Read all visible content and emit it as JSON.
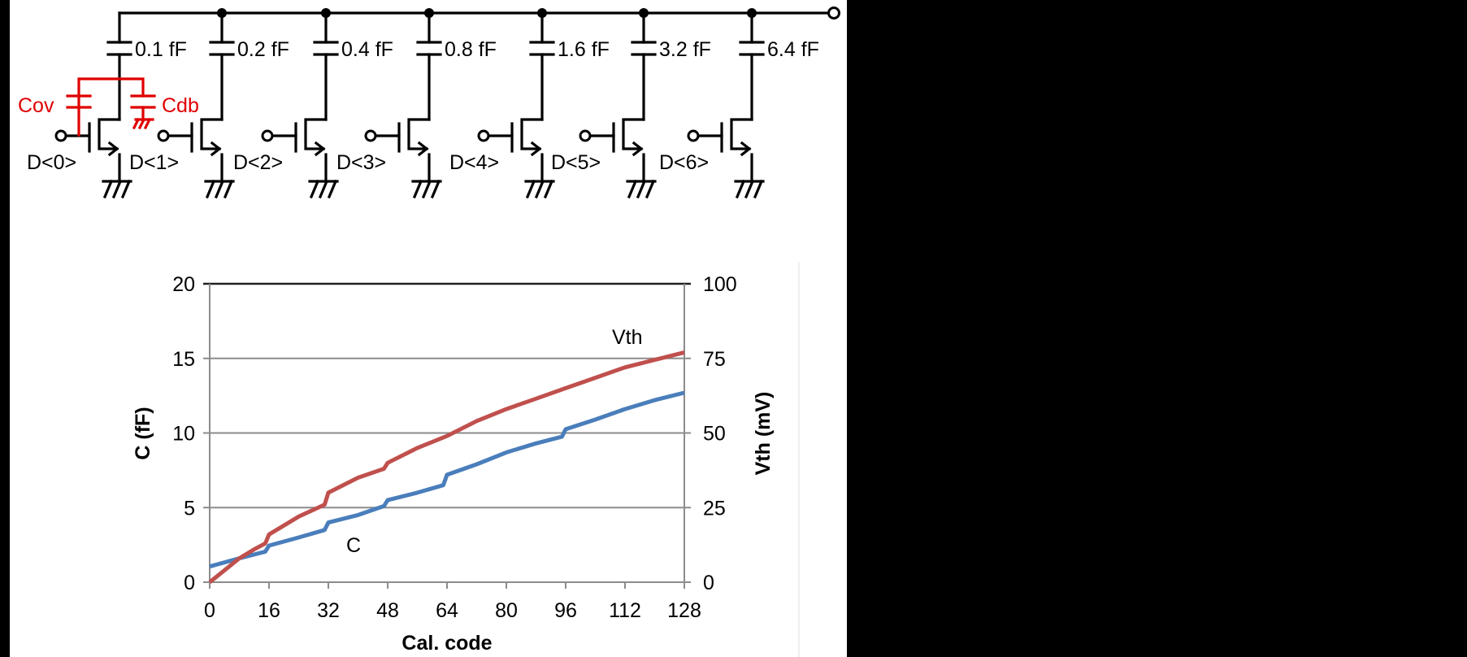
{
  "schematic": {
    "branches": [
      {
        "cap_label": "0.1 fF",
        "gate_label": "D<0>"
      },
      {
        "cap_label": "0.2 fF",
        "gate_label": "D<1>"
      },
      {
        "cap_label": "0.4 fF",
        "gate_label": "D<2>"
      },
      {
        "cap_label": "0.8 fF",
        "gate_label": "D<3>"
      },
      {
        "cap_label": "1.6 fF",
        "gate_label": "D<4>"
      },
      {
        "cap_label": "3.2 fF",
        "gate_label": "D<5>"
      },
      {
        "cap_label": "6.4 fF",
        "gate_label": "D<6>"
      }
    ],
    "parasitics": {
      "cov_label": "Cov",
      "cdb_label": "Cdb",
      "color": "#e00000"
    }
  },
  "chart_data": {
    "type": "line",
    "title": "",
    "xlabel": "Cal. code",
    "ylabel": "C (fF)",
    "y2label": "Vth (mV)",
    "xlim": [
      0,
      128
    ],
    "ylim": [
      0,
      20
    ],
    "y2lim": [
      0,
      100
    ],
    "x_ticks": [
      "0",
      "16",
      "32",
      "48",
      "64",
      "80",
      "96",
      "112",
      "128"
    ],
    "y_ticks": [
      "0",
      "5",
      "10",
      "15",
      "20"
    ],
    "y2_ticks": [
      "0",
      "25",
      "50",
      "75",
      "100"
    ],
    "grid": true,
    "legend": "inline labels",
    "annotations": [
      {
        "text": "Vth",
        "series": "Vth"
      },
      {
        "text": "C",
        "series": "C"
      }
    ],
    "series": [
      {
        "name": "C",
        "axis": "left",
        "unit": "fF",
        "color": "#4a7ebb",
        "x": [
          0,
          8,
          15,
          16,
          24,
          31,
          32,
          40,
          47,
          48,
          56,
          63,
          64,
          72,
          80,
          88,
          95,
          96,
          104,
          112,
          120,
          128
        ],
        "values": [
          1.05,
          1.6,
          2.05,
          2.45,
          3.0,
          3.5,
          4.0,
          4.5,
          5.1,
          5.5,
          6.0,
          6.5,
          7.2,
          7.9,
          8.7,
          9.3,
          9.75,
          10.25,
          10.9,
          11.6,
          12.2,
          12.7
        ]
      },
      {
        "name": "Vth",
        "axis": "right",
        "unit": "mV",
        "color": "#c0504d",
        "x": [
          0,
          4,
          8,
          12,
          15,
          16,
          24,
          31,
          32,
          40,
          47,
          48,
          56,
          64,
          72,
          80,
          88,
          96,
          104,
          112,
          120,
          128
        ],
        "values": [
          0,
          4,
          8,
          11,
          13,
          16,
          22,
          26,
          30,
          35,
          38,
          40,
          45,
          49,
          54,
          58,
          61.5,
          65,
          68.5,
          72,
          74.5,
          77
        ]
      }
    ]
  }
}
